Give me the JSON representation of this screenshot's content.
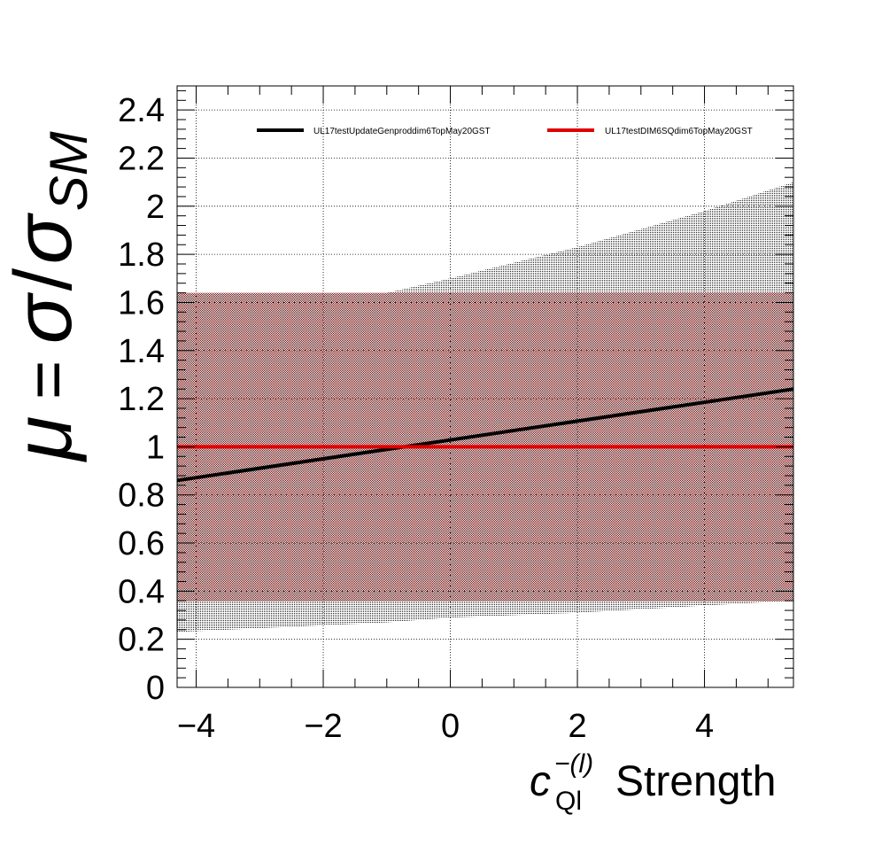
{
  "chart_data": {
    "type": "line",
    "xlabel": {
      "symbol": "c",
      "superscript": "−(l)",
      "subscript": "Ql",
      "text": "Strength"
    },
    "ylabel": {
      "mu": "μ",
      "equals": "=",
      "sigma": "σ",
      "slash": "/",
      "sigma_sm": "σ",
      "sub": "SM"
    },
    "xlim": [
      -4.3,
      5.4
    ],
    "ylim": [
      0,
      2.5
    ],
    "x_ticks": [
      -4,
      -2,
      0,
      2,
      4
    ],
    "x_tick_labels": [
      "−4",
      "−2",
      "0",
      "2",
      "4"
    ],
    "y_ticks": [
      0,
      0.2,
      0.4,
      0.6,
      0.8,
      1,
      1.2,
      1.4,
      1.6,
      1.8,
      2,
      2.2,
      2.4
    ],
    "y_tick_labels": [
      "0",
      "0.2",
      "0.4",
      "0.6",
      "0.8",
      "1",
      "1.2",
      "1.4",
      "1.6",
      "1.8",
      "2",
      "2.2",
      "2.4"
    ],
    "grid": true,
    "legend_position": "top",
    "series": [
      {
        "name": "UL17testUpdateGenproddim6TopMay20GST",
        "color": "#000000",
        "x": [
          -4.3,
          5.4
        ],
        "y": [
          0.86,
          1.24
        ],
        "band_x": [
          -4.3,
          -1.0,
          0.0,
          2.0,
          4.0,
          5.4
        ],
        "band_upper": [
          1.64,
          1.64,
          1.7,
          1.83,
          1.98,
          2.1
        ],
        "band_lower": [
          0.23,
          0.27,
          0.29,
          0.31,
          0.34,
          0.36
        ]
      },
      {
        "name": "UL17testDIM6SQdim6TopMay20GST",
        "color": "#e00000",
        "x": [
          -4.3,
          5.4
        ],
        "y": [
          1.0,
          1.0
        ],
        "band_x": [
          -4.3,
          5.4
        ],
        "band_upper": [
          1.64,
          1.64
        ],
        "band_lower": [
          0.36,
          0.36
        ]
      }
    ]
  }
}
